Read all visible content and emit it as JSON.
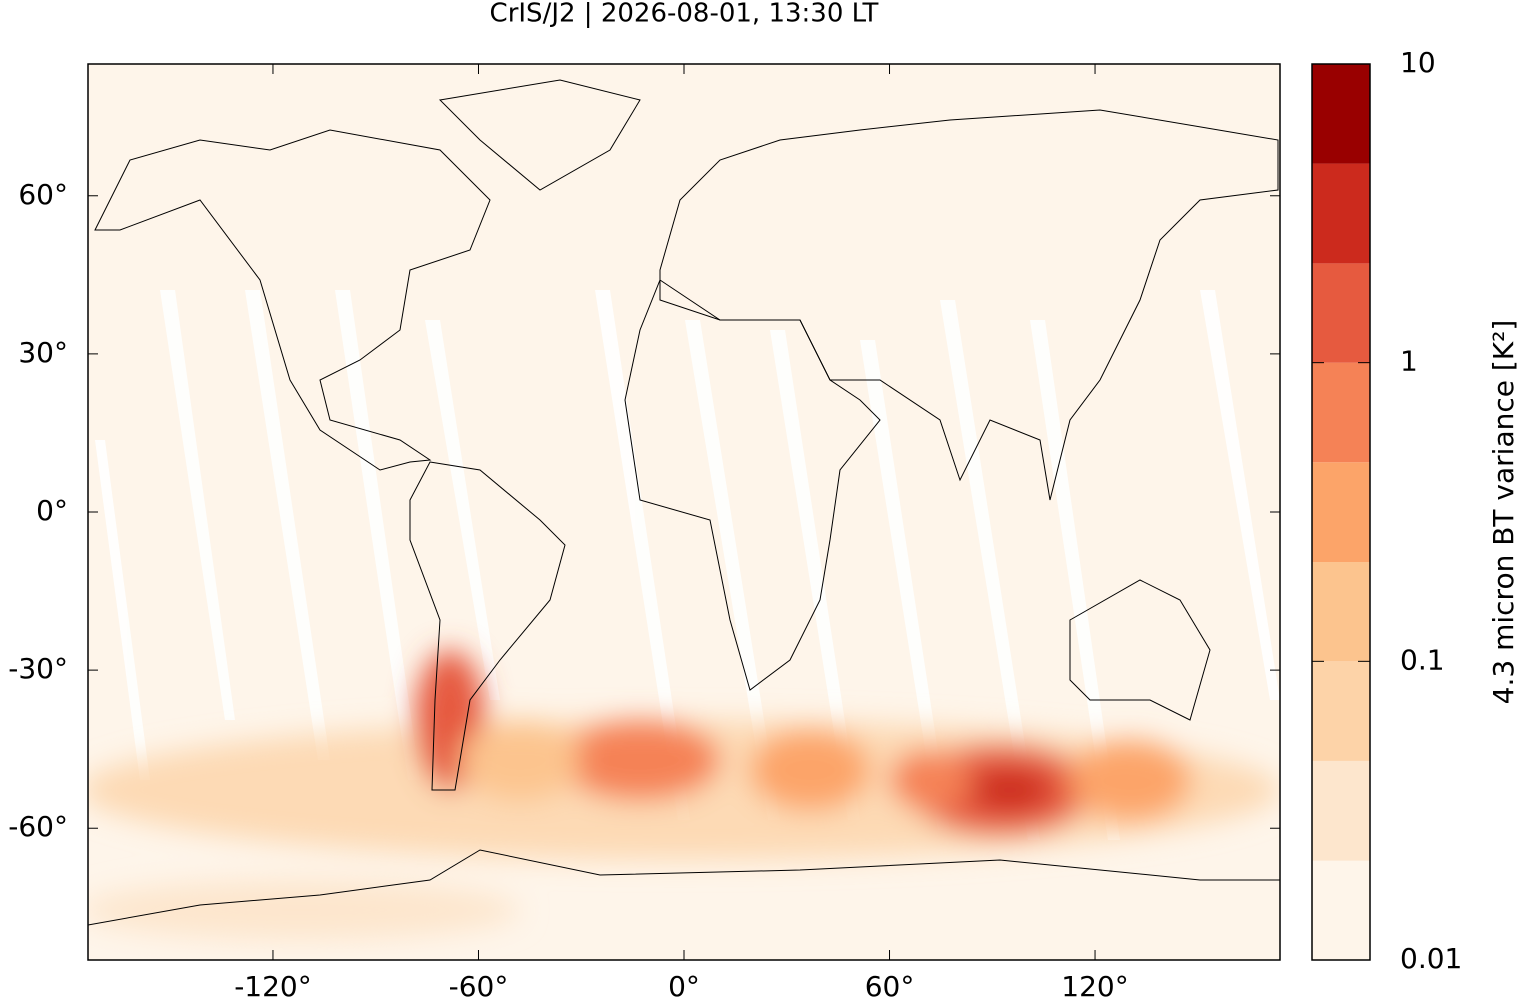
{
  "chart_data": {
    "type": "map",
    "title": "CrIS/J2 | 2026-08-01, 13:30 LT",
    "xlim": [
      -174,
      174
    ],
    "ylim": [
      -85,
      85
    ],
    "xticks": [
      {
        "value": -120,
        "label": "-120°"
      },
      {
        "value": -60,
        "label": "-60°"
      },
      {
        "value": 0,
        "label": "0°"
      },
      {
        "value": 60,
        "label": "60°"
      },
      {
        "value": 120,
        "label": "120°"
      }
    ],
    "yticks": [
      {
        "value": 60,
        "label": "60°"
      },
      {
        "value": 30,
        "label": "30°"
      },
      {
        "value": 0,
        "label": "0°"
      },
      {
        "value": -30,
        "label": "-30°"
      },
      {
        "value": -60,
        "label": "-60°"
      }
    ],
    "colorbar": {
      "label": "4.3 micron BT variance [K²]",
      "log": true,
      "lim": [
        0.01,
        10
      ],
      "ticks": [
        0.01,
        0.1,
        1,
        10
      ],
      "levels": [
        0.01,
        0.0215,
        0.0464,
        0.1,
        0.215,
        0.464,
        1,
        2.15,
        4.64,
        10
      ],
      "colors": [
        "#fef5ea",
        "#fde6cd",
        "#fdd3a8",
        "#fcc48e",
        "#fca469",
        "#f58256",
        "#e65a3f",
        "#cc2a1d",
        "#990000"
      ]
    }
  }
}
